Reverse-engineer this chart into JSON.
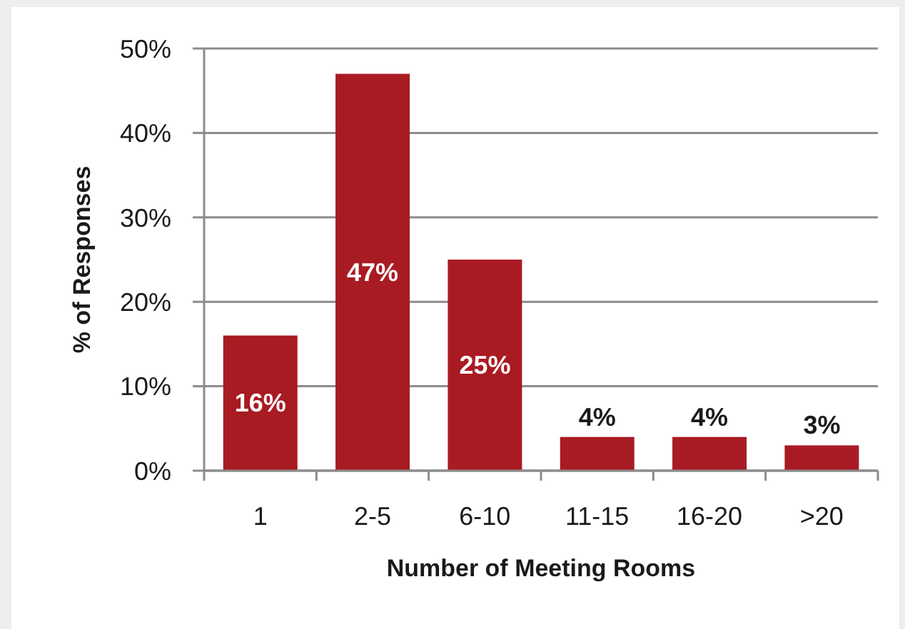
{
  "chart_data": {
    "type": "bar",
    "xlabel": "Number of Meeting Rooms",
    "ylabel": "% of Responses",
    "categories": [
      "1",
      "2-5",
      "6-10",
      "11-15",
      "16-20",
      ">20"
    ],
    "values": [
      16,
      47,
      25,
      4,
      4,
      3
    ],
    "color": "#a91b22",
    "value_labels": [
      "16%",
      "47%",
      "25%",
      "4%",
      "4%",
      "3%"
    ],
    "ylim": [
      0,
      50
    ],
    "yticks": [
      {
        "value": 0,
        "label": "0%"
      },
      {
        "value": 10,
        "label": "10%"
      },
      {
        "value": 20,
        "label": "20%"
      },
      {
        "value": 30,
        "label": "30%"
      },
      {
        "value": 40,
        "label": "40%"
      },
      {
        "value": 50,
        "label": "50%"
      }
    ],
    "grid": "y"
  }
}
